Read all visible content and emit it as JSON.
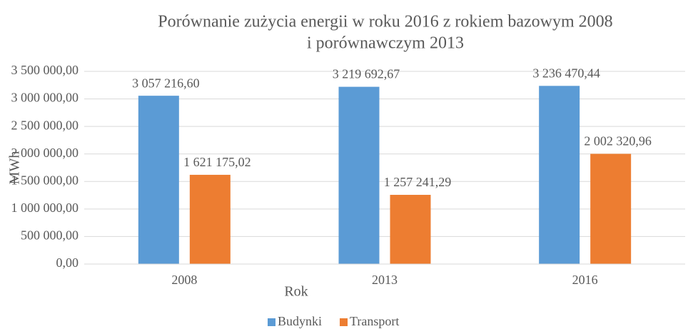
{
  "chart_data": {
    "type": "bar",
    "title": [
      "Porównanie zużycia energii w roku 2016 z rokiem bazowym 2008",
      "i porównawczym 2013"
    ],
    "x_label": "Rok",
    "y_label": "MWh",
    "categories": [
      "2008",
      "2013",
      "2016"
    ],
    "series": [
      {
        "name": "Budynki",
        "color": "#5b9bd5",
        "values": [
          3057216.6,
          3219692.67,
          3236470.44
        ],
        "value_labels": [
          "3 057 216,60",
          "3 219 692,67",
          "3 236 470,44"
        ]
      },
      {
        "name": "Transport",
        "color": "#ed7d31",
        "values": [
          1621175.02,
          1257241.29,
          2002320.96
        ],
        "value_labels": [
          "1 621 175,02",
          "1 257 241,29",
          "2 002 320,96"
        ]
      }
    ],
    "ylim": [
      0,
      3500000
    ],
    "yticks": [
      {
        "value": 0,
        "label": "0,00"
      },
      {
        "value": 500000,
        "label": "500 000,00"
      },
      {
        "value": 1000000,
        "label": "1 000 000,00"
      },
      {
        "value": 1500000,
        "label": "1 500 000,00"
      },
      {
        "value": 2000000,
        "label": "2 000 000,00"
      },
      {
        "value": 2500000,
        "label": "2 500 000,00"
      },
      {
        "value": 3000000,
        "label": "3 000 000,00"
      },
      {
        "value": 3500000,
        "label": "3 500 000,00"
      }
    ],
    "grid": true,
    "legend": "bottom"
  }
}
